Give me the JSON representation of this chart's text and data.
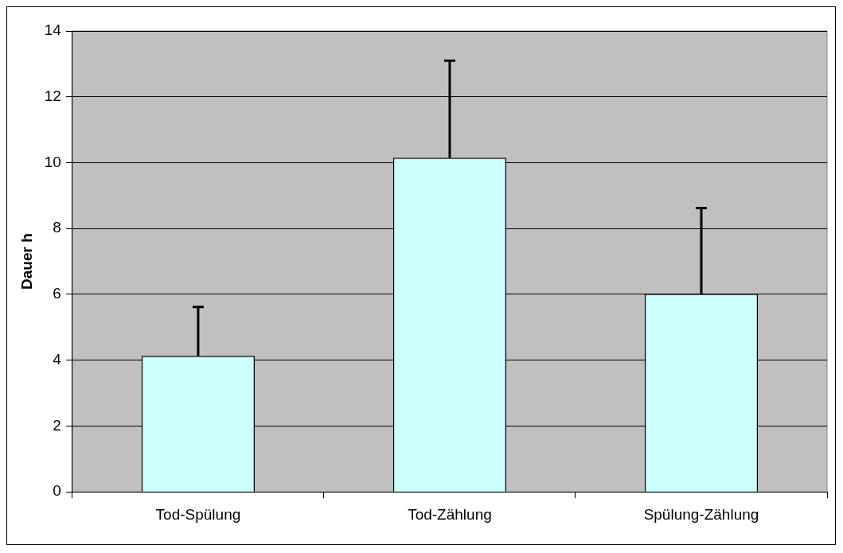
{
  "chart_data": {
    "type": "bar",
    "ylabel": "Dauer h",
    "categories": [
      "Tod-Spülung",
      "Tod-Zählung",
      "Spülung-Zählung"
    ],
    "values": [
      4.13,
      10.15,
      6.02
    ],
    "errors": [
      [
        4.13,
        5.62
      ],
      [
        10.15,
        13.1
      ],
      [
        6.02,
        8.62
      ]
    ],
    "color": "#ccffff",
    "ylim": [
      0,
      14
    ],
    "yticks": [
      0,
      2,
      4,
      6,
      8,
      10,
      12,
      14
    ],
    "grid": "y",
    "legend": false
  }
}
